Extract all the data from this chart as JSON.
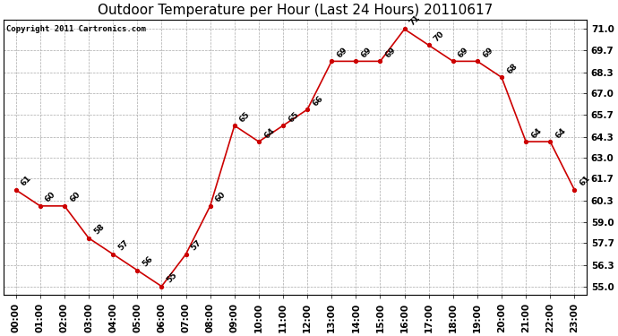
{
  "title": "Outdoor Temperature per Hour (Last 24 Hours) 20110617",
  "copyright_text": "Copyright 2011 Cartronics.com",
  "hours": [
    "00:00",
    "01:00",
    "02:00",
    "03:00",
    "04:00",
    "05:00",
    "06:00",
    "07:00",
    "08:00",
    "09:00",
    "10:00",
    "11:00",
    "12:00",
    "13:00",
    "14:00",
    "15:00",
    "16:00",
    "17:00",
    "18:00",
    "19:00",
    "20:00",
    "21:00",
    "22:00",
    "23:00"
  ],
  "temps": [
    61,
    60,
    60,
    58,
    57,
    56,
    55,
    57,
    60,
    65,
    64,
    65,
    66,
    69,
    69,
    69,
    71,
    70,
    69,
    69,
    68,
    64,
    64,
    61
  ],
  "line_color": "#cc0000",
  "marker": "o",
  "background_color": "#ffffff",
  "grid_color": "#aaaaaa",
  "yticks": [
    55.0,
    56.3,
    57.7,
    59.0,
    60.3,
    61.7,
    63.0,
    64.3,
    65.7,
    67.0,
    68.3,
    69.7,
    71.0
  ],
  "ylim": [
    54.5,
    71.6
  ],
  "title_fontsize": 11,
  "annotation_fontsize": 6.5,
  "tick_fontsize": 7.5,
  "copyright_fontsize": 6.5
}
